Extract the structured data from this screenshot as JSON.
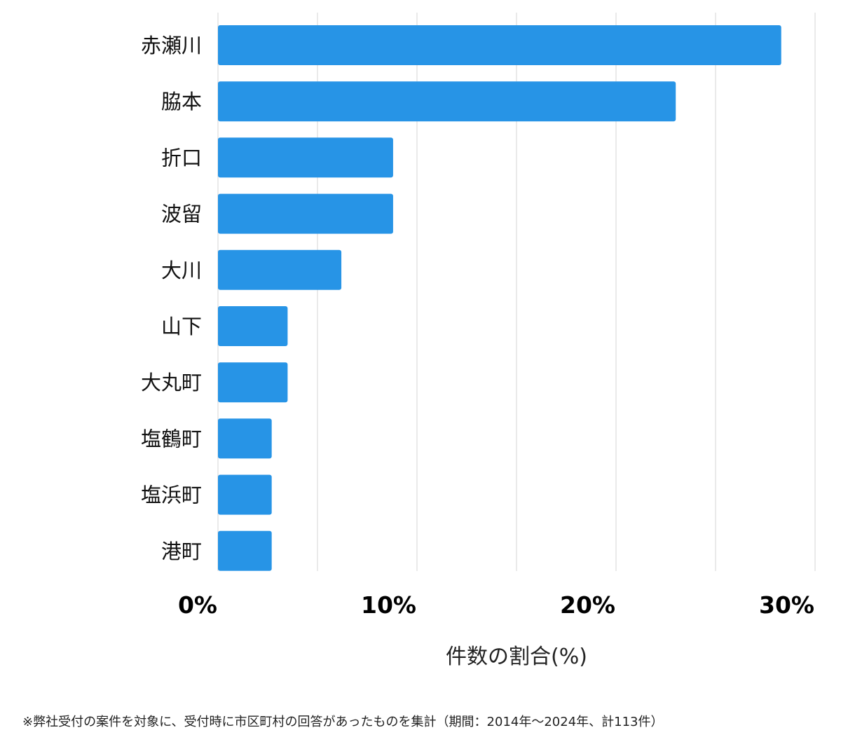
{
  "chart_data": {
    "type": "bar",
    "orientation": "horizontal",
    "categories": [
      "赤瀬川",
      "脇本",
      "折口",
      "波留",
      "大川",
      "山下",
      "大丸町",
      "塩鶴町",
      "塩浜町",
      "港町"
    ],
    "values": [
      28.3,
      23.0,
      8.8,
      8.8,
      6.2,
      3.5,
      3.5,
      2.7,
      2.7,
      2.7
    ],
    "xlabel": "件数の割合(%)",
    "ylabel": "",
    "xlim": [
      0,
      30
    ],
    "xticks": [
      0,
      10,
      20,
      30
    ],
    "xtick_labels": [
      "0%",
      "10%",
      "20%",
      "30%"
    ],
    "gridlines_every": 5,
    "grid": true,
    "bar_color": "#2794e6"
  },
  "footnote": "※弊社受付の案件を対象に、受付時に市区町村の回答があったものを集計（期間：2014年～2024年、計113件）"
}
